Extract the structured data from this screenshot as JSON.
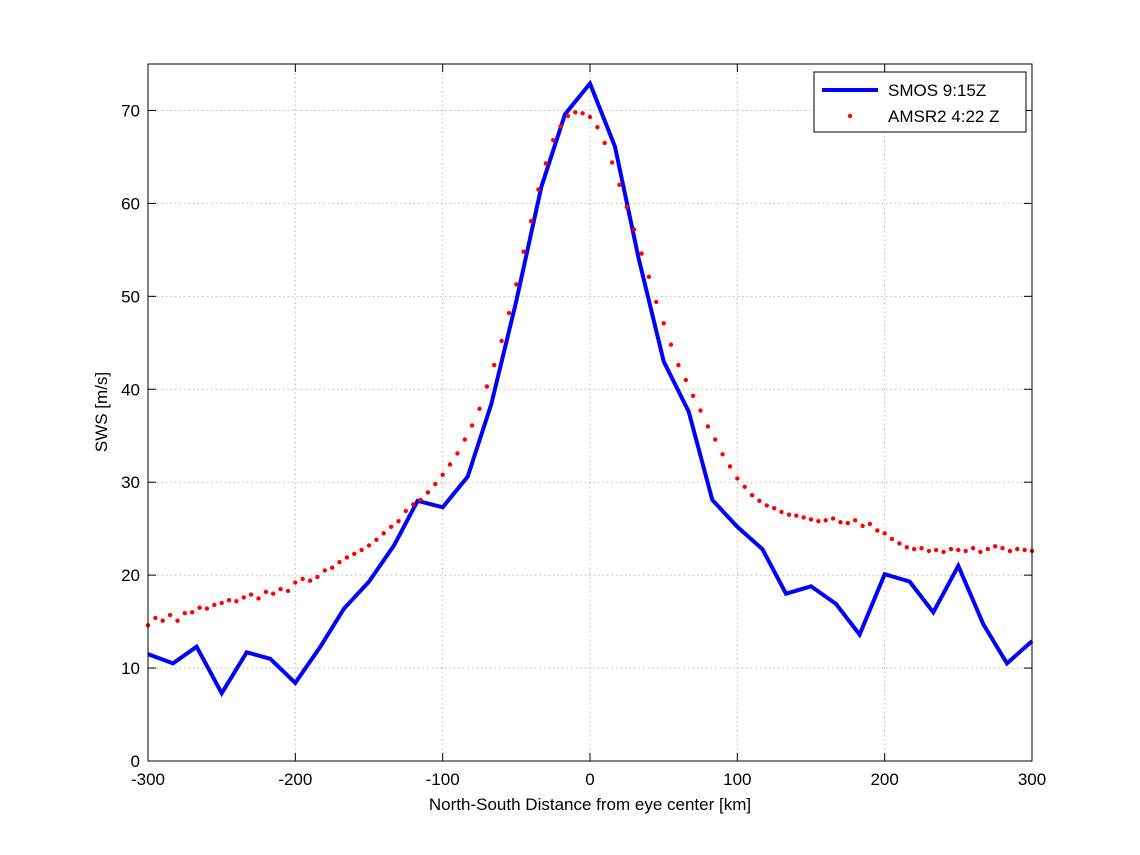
{
  "chart_data": {
    "type": "line",
    "title": "",
    "xlabel": "North-South Distance from eye center [km]",
    "ylabel": "SWS [m/s]",
    "xlim": [
      -300,
      300
    ],
    "ylim": [
      0,
      75
    ],
    "xticks": [
      -300,
      -200,
      -100,
      0,
      100,
      200,
      300
    ],
    "yticks": [
      0,
      10,
      20,
      30,
      40,
      50,
      60,
      70
    ],
    "grid": true,
    "legend_position": "top-right",
    "series": [
      {
        "name": "SMOS 9:15Z",
        "style": "solid-line",
        "color": "#0000ff",
        "x": [
          -300,
          -283,
          -267,
          -250,
          -233,
          -217,
          -200,
          -183,
          -167,
          -150,
          -133,
          -117,
          -100,
          -83,
          -67,
          -50,
          -33,
          -17,
          0,
          17,
          33,
          50,
          67,
          83,
          100,
          117,
          133,
          150,
          167,
          183,
          200,
          217,
          233,
          250,
          267,
          283,
          300
        ],
        "y": [
          11.5,
          10.5,
          12.3,
          7.3,
          11.7,
          11.0,
          8.4,
          12.3,
          16.4,
          19.3,
          23.2,
          28.0,
          27.3,
          30.6,
          38.4,
          49.5,
          61.8,
          69.6,
          72.9,
          66.1,
          54.1,
          43.0,
          37.6,
          28.1,
          25.2,
          22.8,
          18.0,
          18.8,
          16.9,
          13.6,
          20.1,
          19.3,
          16.0,
          21.0,
          14.7,
          10.5,
          12.9
        ]
      },
      {
        "name": "AMSR2 4:22 Z",
        "style": "dots",
        "color": "#ff0000",
        "x": [
          -300,
          -295,
          -290,
          -285,
          -280,
          -275,
          -270,
          -265,
          -260,
          -255,
          -250,
          -245,
          -240,
          -235,
          -230,
          -225,
          -220,
          -215,
          -210,
          -205,
          -200,
          -195,
          -190,
          -185,
          -180,
          -175,
          -170,
          -165,
          -160,
          -155,
          -150,
          -145,
          -140,
          -135,
          -130,
          -125,
          -120,
          -115,
          -110,
          -105,
          -100,
          -95,
          -90,
          -85,
          -80,
          -75,
          -70,
          -65,
          -60,
          -55,
          -50,
          -45,
          -40,
          -35,
          -30,
          -25,
          -20,
          -15,
          -10,
          -5,
          0,
          5,
          10,
          15,
          20,
          25,
          30,
          35,
          40,
          45,
          50,
          55,
          60,
          65,
          70,
          75,
          80,
          85,
          90,
          95,
          100,
          105,
          110,
          115,
          120,
          125,
          130,
          135,
          140,
          145,
          150,
          155,
          160,
          165,
          170,
          175,
          180,
          185,
          190,
          195,
          200,
          205,
          210,
          215,
          220,
          225,
          230,
          235,
          240,
          245,
          250,
          255,
          260,
          265,
          270,
          275,
          280,
          285,
          290,
          295,
          300
        ],
        "y": [
          14.6,
          15.4,
          15.1,
          15.7,
          15.1,
          15.9,
          16.0,
          16.5,
          16.4,
          16.8,
          17.0,
          17.3,
          17.2,
          17.6,
          17.9,
          17.5,
          18.2,
          18.0,
          18.5,
          18.3,
          19.2,
          19.6,
          19.4,
          19.8,
          20.5,
          20.8,
          21.4,
          21.9,
          22.3,
          22.7,
          23.2,
          23.8,
          24.5,
          25.2,
          25.8,
          26.9,
          27.6,
          28.1,
          28.9,
          29.8,
          30.8,
          31.9,
          33.1,
          34.6,
          36.1,
          37.9,
          40.3,
          42.6,
          45.2,
          48.2,
          51.3,
          54.8,
          58.1,
          61.5,
          64.3,
          66.8,
          68.3,
          69.4,
          69.8,
          69.7,
          69.3,
          68.2,
          66.5,
          64.4,
          62.0,
          59.6,
          57.2,
          54.6,
          52.1,
          49.4,
          47.1,
          44.8,
          42.6,
          41.0,
          39.3,
          37.7,
          36.0,
          34.6,
          33.0,
          31.7,
          30.4,
          29.5,
          28.6,
          28.0,
          27.5,
          27.2,
          26.8,
          26.5,
          26.4,
          26.2,
          26.0,
          25.8,
          25.9,
          26.1,
          25.7,
          25.6,
          25.9,
          25.3,
          25.5,
          24.8,
          24.5,
          23.9,
          23.4,
          23.0,
          22.8,
          22.9,
          22.6,
          22.7,
          22.5,
          22.8,
          22.7,
          22.6,
          22.9,
          22.5,
          22.8,
          23.1,
          22.9,
          22.6,
          22.8,
          22.7,
          22.6
        ]
      }
    ]
  }
}
